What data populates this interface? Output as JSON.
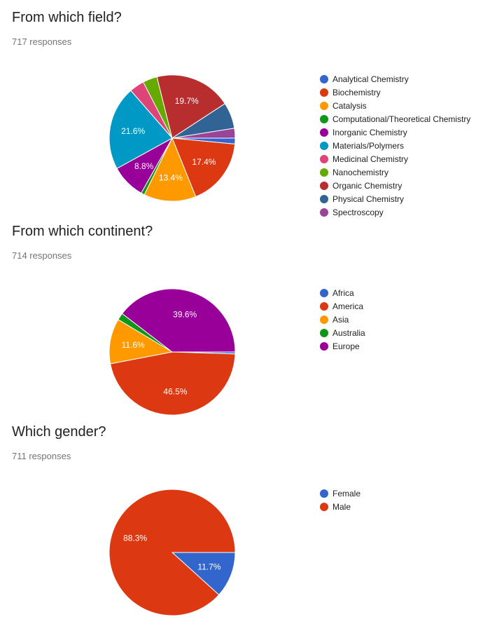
{
  "chart_data": [
    {
      "type": "pie",
      "title": "From which field?",
      "responses": "717 responses",
      "categories": [
        "Analytical Chemistry",
        "Biochemistry",
        "Catalysis",
        "Computational/Theoretical Chemistry",
        "Inorganic Chemistry",
        "Materials/Polymers",
        "Medicinal Chemistry",
        "Nanochemistry",
        "Organic Chemistry",
        "Physical Chemistry",
        "Spectroscopy"
      ],
      "values": [
        1.5,
        17.4,
        13.4,
        0.9,
        8.8,
        21.6,
        3.8,
        3.7,
        19.7,
        6.7,
        2.5
      ],
      "labels": [
        "",
        "17.4%",
        "13.4%",
        "",
        "8.8%",
        "21.6%",
        "",
        "",
        "19.7%",
        "",
        ""
      ],
      "colors": [
        "#3366cc",
        "#dc3912",
        "#ff9900",
        "#109618",
        "#990099",
        "#0099c6",
        "#dd4477",
        "#66aa00",
        "#b82e2e",
        "#316395",
        "#994499"
      ],
      "legend": "right"
    },
    {
      "type": "pie",
      "title": "From which continent?",
      "responses": "714 responses",
      "categories": [
        "Africa",
        "America",
        "Asia",
        "Australia",
        "Europe"
      ],
      "values": [
        0.5,
        46.5,
        11.6,
        1.8,
        39.6
      ],
      "labels": [
        "",
        "46.5%",
        "11.6%",
        "",
        "39.6%"
      ],
      "colors": [
        "#3366cc",
        "#dc3912",
        "#ff9900",
        "#109618",
        "#990099"
      ],
      "legend": "right"
    },
    {
      "type": "pie",
      "title": "Which gender?",
      "responses": "711 responses",
      "categories": [
        "Female",
        "Male"
      ],
      "values": [
        11.7,
        88.3
      ],
      "labels": [
        "11.7%",
        "88.3%"
      ],
      "colors": [
        "#3366cc",
        "#dc3912"
      ],
      "legend": "right"
    }
  ]
}
